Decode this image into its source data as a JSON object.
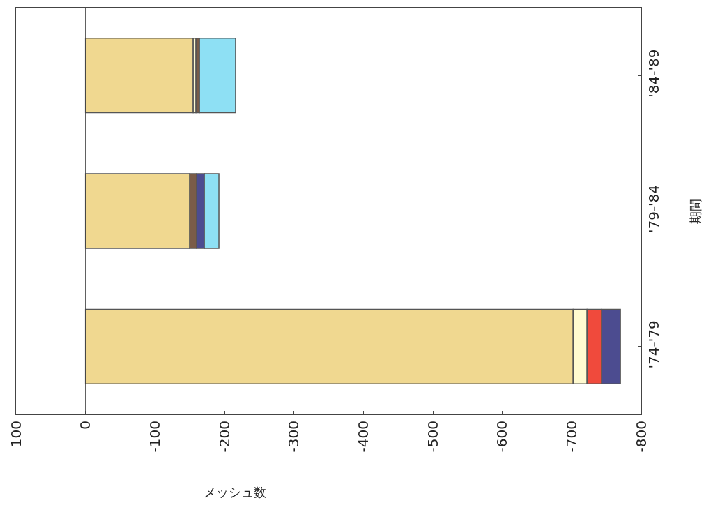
{
  "chart_data": {
    "type": "bar",
    "orientation": "horizontal",
    "stacked": true,
    "xlabel": "メッシュ数",
    "ylabel": "期間",
    "categories": [
      "'84-'89",
      "'79-'84",
      "'74-'79"
    ],
    "series": [
      {
        "color": "#f0d890",
        "values": [
          -155,
          -150,
          -702
        ]
      },
      {
        "color": "#fffad0",
        "values": [
          -4,
          null,
          -20
        ]
      },
      {
        "color": "#f04a3c",
        "values": [
          null,
          null,
          -21
        ]
      },
      {
        "color": "#7a5c48",
        "values": [
          -5,
          -10,
          null
        ]
      },
      {
        "color": "#4c4c90",
        "values": [
          null,
          -11,
          -27
        ]
      },
      {
        "color": "#8ee0f4",
        "values": [
          -52,
          -21,
          null
        ]
      }
    ],
    "xlim": [
      100,
      -800
    ],
    "xticks": [
      100,
      0,
      -100,
      -200,
      -300,
      -400,
      -500,
      -600,
      -700,
      -800
    ],
    "ref_lines": [
      {
        "axis": "x",
        "value": 0
      }
    ]
  }
}
